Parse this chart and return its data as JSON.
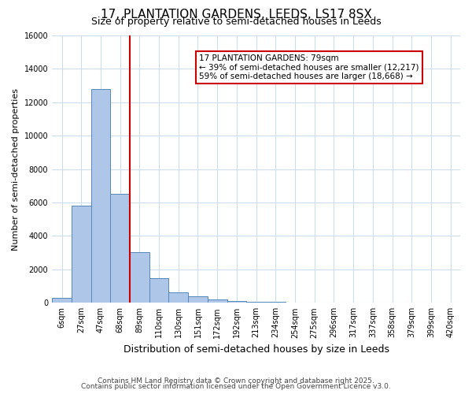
{
  "title1": "17, PLANTATION GARDENS, LEEDS, LS17 8SX",
  "title2": "Size of property relative to semi-detached houses in Leeds",
  "xlabel": "Distribution of semi-detached houses by size in Leeds",
  "ylabel": "Number of semi-detached properties",
  "bin_labels": [
    "6sqm",
    "27sqm",
    "47sqm",
    "68sqm",
    "89sqm",
    "110sqm",
    "130sqm",
    "151sqm",
    "172sqm",
    "192sqm",
    "213sqm",
    "234sqm",
    "254sqm",
    "275sqm",
    "296sqm",
    "317sqm",
    "337sqm",
    "358sqm",
    "379sqm",
    "399sqm",
    "420sqm"
  ],
  "bar_values": [
    300,
    5800,
    12800,
    6500,
    3050,
    1480,
    620,
    370,
    200,
    120,
    80,
    50,
    30,
    0,
    0,
    0,
    0,
    0,
    0,
    0,
    0
  ],
  "bar_color": "#aec6e8",
  "bar_edge_color": "#5588bb",
  "property_sqm": 79,
  "property_bin_index": 3,
  "red_line_color": "#cc0000",
  "annotation_text": "17 PLANTATION GARDENS: 79sqm\n← 39% of semi-detached houses are smaller (12,217)\n59% of semi-detached houses are larger (18,668) →",
  "annotation_box_color": "#ffffff",
  "annotation_box_edge": "#cc0000",
  "ylim": [
    0,
    16000
  ],
  "yticks": [
    0,
    2000,
    4000,
    6000,
    8000,
    10000,
    12000,
    14000,
    16000
  ],
  "footer1": "Contains HM Land Registry data © Crown copyright and database right 2025.",
  "footer2": "Contains public sector information licensed under the Open Government Licence v3.0.",
  "bg_color": "#ffffff",
  "grid_color": "#ccddee",
  "figsize": [
    6.0,
    5.0
  ],
  "dpi": 100
}
